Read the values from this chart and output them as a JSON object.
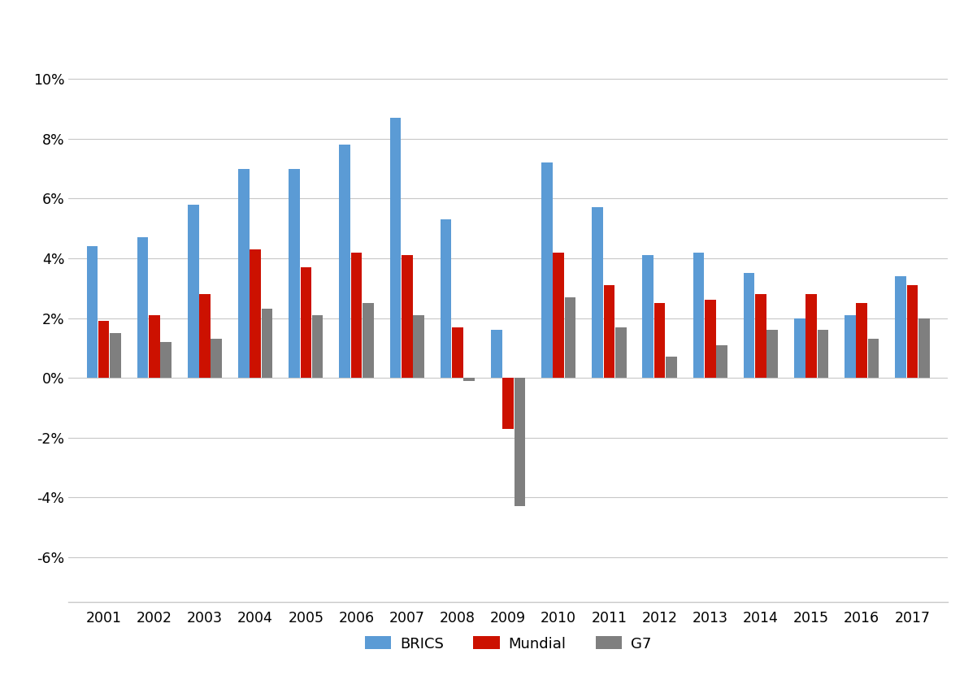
{
  "years": [
    2001,
    2002,
    2003,
    2004,
    2005,
    2006,
    2007,
    2008,
    2009,
    2010,
    2011,
    2012,
    2013,
    2014,
    2015,
    2016,
    2017
  ],
  "brics": [
    4.4,
    4.7,
    5.8,
    7.0,
    7.0,
    7.8,
    8.7,
    5.3,
    1.6,
    7.2,
    5.7,
    4.1,
    4.2,
    3.5,
    2.0,
    2.1,
    3.4
  ],
  "mundial": [
    1.9,
    2.1,
    2.8,
    4.3,
    3.7,
    4.2,
    4.1,
    1.7,
    -1.7,
    4.2,
    3.1,
    2.5,
    2.6,
    2.8,
    2.8,
    2.5,
    3.1
  ],
  "g7": [
    1.5,
    1.2,
    1.3,
    2.3,
    2.1,
    2.5,
    2.1,
    -0.1,
    -4.3,
    2.7,
    1.7,
    0.7,
    1.1,
    1.6,
    1.6,
    1.3,
    2.0
  ],
  "brics_color": "#5B9BD5",
  "mundial_color": "#CC1100",
  "g7_color": "#7F7F7F",
  "background_color": "#ffffff",
  "grid_color": "#c8c8c8",
  "ylim": [
    -7.5,
    11.5
  ],
  "yticks": [
    -6,
    -4,
    -2,
    0,
    2,
    4,
    6,
    8,
    10
  ],
  "legend_labels": [
    "BRICS",
    "Mundial",
    "G7"
  ]
}
